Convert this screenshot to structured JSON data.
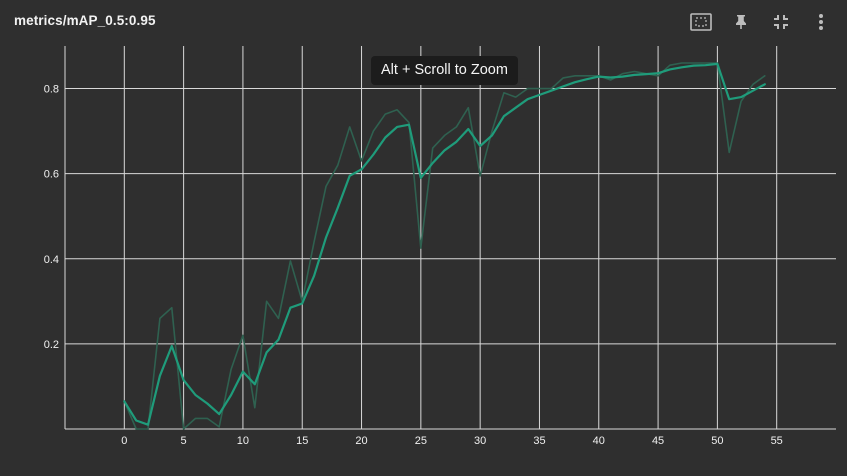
{
  "card": {
    "title": "metrics/mAP_0.5:0.95"
  },
  "toolbar": {
    "icons": [
      "select-zoom-icon",
      "pin-icon",
      "collapse-icon",
      "more-vert-icon"
    ]
  },
  "tooltip": {
    "text": "Alt + Scroll to Zoom"
  },
  "colors": {
    "background": "#2f2f2f",
    "grid": "#d9d9d9",
    "smoothed": "#1f9c7b",
    "raw": "#2f6150",
    "tick_text": "#f0f0f0"
  },
  "chart_data": {
    "type": "line",
    "title": "metrics/mAP_0.5:0.95",
    "xlabel": "",
    "ylabel": "",
    "xlim": [
      -5,
      60
    ],
    "ylim": [
      0,
      0.9
    ],
    "x_ticks": [
      0,
      5,
      10,
      15,
      20,
      25,
      30,
      35,
      40,
      45,
      50,
      55
    ],
    "y_ticks": [
      0.2,
      0.4,
      0.6,
      0.8
    ],
    "grid": true,
    "series": [
      {
        "role": "raw",
        "x": [
          0,
          1,
          2,
          3,
          4,
          5,
          6,
          7,
          8,
          9,
          10,
          11,
          12,
          13,
          14,
          15,
          16,
          17,
          18,
          19,
          20,
          21,
          22,
          23,
          24,
          25,
          26,
          27,
          28,
          29,
          30,
          31,
          32,
          33,
          34,
          35,
          36,
          37,
          38,
          39,
          40,
          41,
          42,
          43,
          44,
          45,
          46,
          47,
          48,
          49,
          50,
          51,
          52,
          53,
          54
        ],
        "values": [
          0.065,
          0.0,
          0.0,
          0.26,
          0.285,
          0.0,
          0.025,
          0.025,
          0.005,
          0.14,
          0.22,
          0.05,
          0.3,
          0.26,
          0.395,
          0.3,
          0.44,
          0.57,
          0.62,
          0.71,
          0.63,
          0.7,
          0.74,
          0.75,
          0.72,
          0.425,
          0.66,
          0.69,
          0.71,
          0.755,
          0.595,
          0.7,
          0.79,
          0.78,
          0.8,
          0.8,
          0.8,
          0.825,
          0.83,
          0.83,
          0.83,
          0.82,
          0.835,
          0.84,
          0.835,
          0.83,
          0.855,
          0.86,
          0.86,
          0.86,
          0.86,
          0.65,
          0.77,
          0.81,
          0.83
        ]
      },
      {
        "role": "smoothed",
        "x": [
          0,
          1,
          2,
          3,
          4,
          5,
          6,
          7,
          8,
          9,
          10,
          11,
          12,
          13,
          14,
          15,
          16,
          17,
          18,
          19,
          20,
          21,
          22,
          23,
          24,
          25,
          26,
          27,
          28,
          29,
          30,
          31,
          32,
          33,
          34,
          35,
          36,
          37,
          38,
          39,
          40,
          41,
          42,
          43,
          44,
          45,
          46,
          47,
          48,
          49,
          50,
          51,
          52,
          53,
          54
        ],
        "values": [
          0.065,
          0.02,
          0.01,
          0.125,
          0.195,
          0.115,
          0.08,
          0.06,
          0.035,
          0.08,
          0.135,
          0.105,
          0.18,
          0.21,
          0.285,
          0.295,
          0.36,
          0.45,
          0.52,
          0.595,
          0.61,
          0.645,
          0.685,
          0.71,
          0.715,
          0.59,
          0.625,
          0.655,
          0.675,
          0.705,
          0.665,
          0.69,
          0.735,
          0.755,
          0.775,
          0.785,
          0.795,
          0.805,
          0.815,
          0.822,
          0.828,
          0.826,
          0.828,
          0.832,
          0.834,
          0.836,
          0.845,
          0.85,
          0.854,
          0.855,
          0.858,
          0.775,
          0.78,
          0.795,
          0.81
        ]
      }
    ]
  }
}
